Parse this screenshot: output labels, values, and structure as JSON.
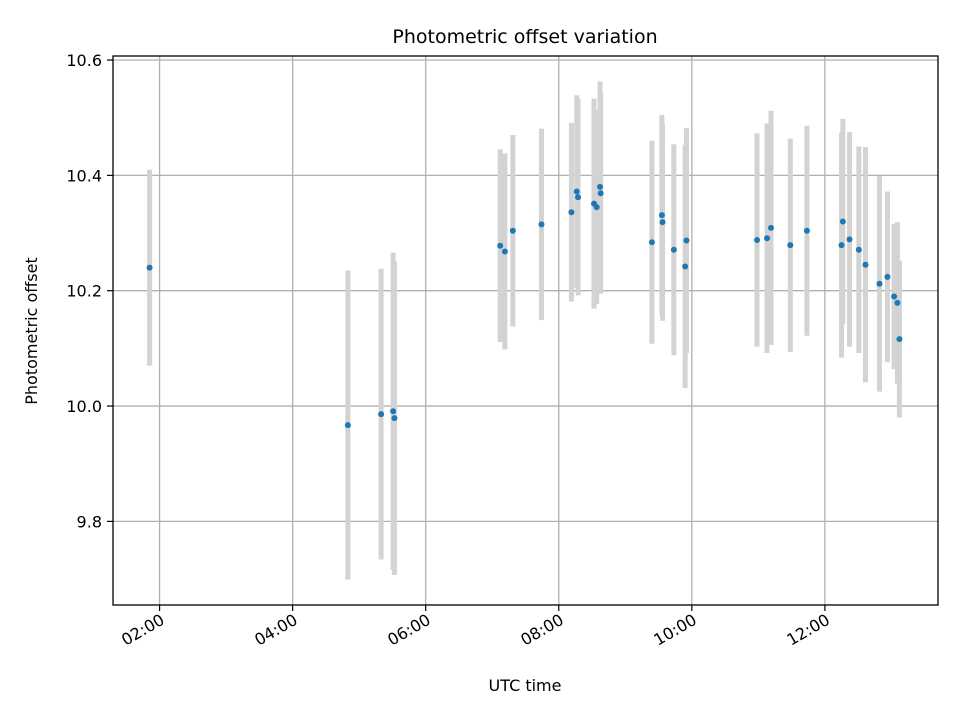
{
  "chart_data": {
    "type": "scatter",
    "title": "Photometric offset variation",
    "xlabel": "UTC time",
    "ylabel": "Photometric offset",
    "x_unit": "hours UTC",
    "xlim": [
      1.3,
      13.7
    ],
    "ylim": [
      9.655,
      10.607
    ],
    "x_ticks": [
      {
        "value": 2,
        "label": "02:00"
      },
      {
        "value": 4,
        "label": "04:00"
      },
      {
        "value": 6,
        "label": "06:00"
      },
      {
        "value": 8,
        "label": "08:00"
      },
      {
        "value": 10,
        "label": "10:00"
      },
      {
        "value": 12,
        "label": "12:00"
      }
    ],
    "y_ticks": [
      {
        "value": 9.8,
        "label": "9.8"
      },
      {
        "value": 10.0,
        "label": "10.0"
      },
      {
        "value": 10.2,
        "label": "10.2"
      },
      {
        "value": 10.4,
        "label": "10.4"
      },
      {
        "value": 10.6,
        "label": "10.6"
      }
    ],
    "grid": true,
    "colors": {
      "point": "#1f77b4",
      "errorbar": "#d3d3d3",
      "grid": "#b0b0b0"
    },
    "points": [
      {
        "x": 1.85,
        "y": 10.24,
        "err": 0.17
      },
      {
        "x": 4.83,
        "y": 9.967,
        "err": 0.268
      },
      {
        "x": 5.33,
        "y": 9.986,
        "err": 0.252
      },
      {
        "x": 5.51,
        "y": 9.991,
        "err": 0.275
      },
      {
        "x": 5.53,
        "y": 9.979,
        "err": 0.272
      },
      {
        "x": 7.12,
        "y": 10.278,
        "err": 0.167
      },
      {
        "x": 7.19,
        "y": 10.268,
        "err": 0.17
      },
      {
        "x": 7.31,
        "y": 10.304,
        "err": 0.166
      },
      {
        "x": 7.74,
        "y": 10.315,
        "err": 0.166
      },
      {
        "x": 8.19,
        "y": 10.336,
        "err": 0.155
      },
      {
        "x": 8.27,
        "y": 10.372,
        "err": 0.167
      },
      {
        "x": 8.29,
        "y": 10.362,
        "err": 0.17
      },
      {
        "x": 8.53,
        "y": 10.351,
        "err": 0.182
      },
      {
        "x": 8.57,
        "y": 10.345,
        "err": 0.168
      },
      {
        "x": 8.62,
        "y": 10.38,
        "err": 0.183
      },
      {
        "x": 8.63,
        "y": 10.369,
        "err": 0.174
      },
      {
        "x": 9.4,
        "y": 10.284,
        "err": 0.176
      },
      {
        "x": 9.55,
        "y": 10.331,
        "err": 0.174
      },
      {
        "x": 9.56,
        "y": 10.319,
        "err": 0.171
      },
      {
        "x": 9.73,
        "y": 10.271,
        "err": 0.183
      },
      {
        "x": 9.9,
        "y": 10.242,
        "err": 0.211
      },
      {
        "x": 9.92,
        "y": 10.287,
        "err": 0.195
      },
      {
        "x": 10.98,
        "y": 10.288,
        "err": 0.185
      },
      {
        "x": 11.13,
        "y": 10.291,
        "err": 0.199
      },
      {
        "x": 11.19,
        "y": 10.309,
        "err": 0.203
      },
      {
        "x": 11.48,
        "y": 10.279,
        "err": 0.185
      },
      {
        "x": 11.73,
        "y": 10.304,
        "err": 0.182
      },
      {
        "x": 12.25,
        "y": 10.279,
        "err": 0.195
      },
      {
        "x": 12.27,
        "y": 10.32,
        "err": 0.178
      },
      {
        "x": 12.37,
        "y": 10.289,
        "err": 0.186
      },
      {
        "x": 12.51,
        "y": 10.271,
        "err": 0.179
      },
      {
        "x": 12.61,
        "y": 10.245,
        "err": 0.204
      },
      {
        "x": 12.82,
        "y": 10.212,
        "err": 0.187
      },
      {
        "x": 12.94,
        "y": 10.224,
        "err": 0.148
      },
      {
        "x": 13.04,
        "y": 10.19,
        "err": 0.126
      },
      {
        "x": 13.09,
        "y": 10.179,
        "err": 0.14
      },
      {
        "x": 13.12,
        "y": 10.116,
        "err": 0.136
      }
    ]
  }
}
